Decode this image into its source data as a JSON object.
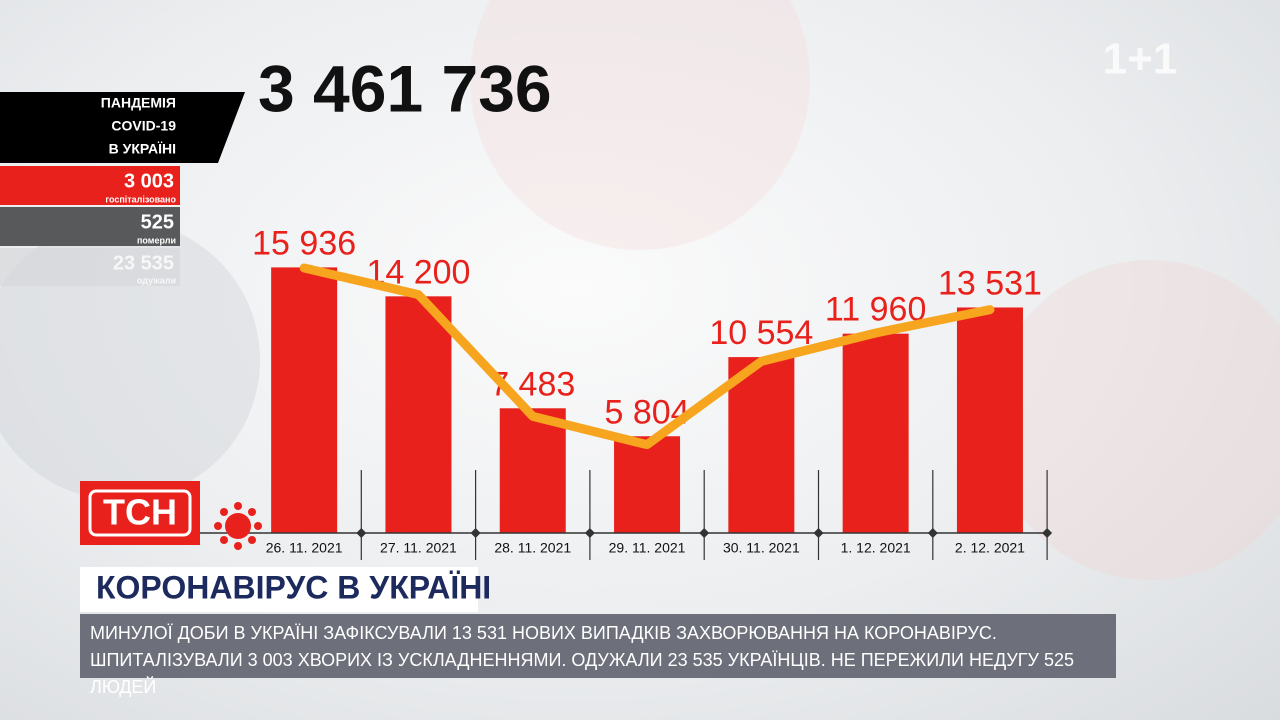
{
  "chart_data": {
    "type": "bar",
    "categories": [
      "26. 11. 2021",
      "27. 11. 2021",
      "28. 11. 2021",
      "29. 11. 2021",
      "30. 11. 2021",
      "1. 12. 2021",
      "2. 12. 2021"
    ],
    "ylim": [
      0,
      18000
    ],
    "series": [
      {
        "type": "bar",
        "color": "#e8211c",
        "values": [
          15936,
          14200,
          7483,
          5804,
          10554,
          11960,
          13531
        ],
        "value_labels": [
          "15 936",
          "14 200",
          "7 483",
          "5 804",
          "10 554",
          "11 960",
          "13 531"
        ]
      },
      {
        "type": "line",
        "color": "#f7a51e",
        "values": [
          15900,
          14300,
          7000,
          5300,
          10300,
          12000,
          13400
        ]
      }
    ]
  },
  "total": "3 461 736",
  "panel": {
    "title": [
      "ПАНДЕМІЯ",
      "COVID-19",
      "В УКРАЇНІ"
    ],
    "hospitalized": {
      "value": "3 003",
      "label": "госпіталізовано"
    },
    "died": {
      "value": "525",
      "label": "померли"
    },
    "recovered": {
      "value": "23 535",
      "label": "одужали"
    }
  },
  "channel": "1+1",
  "logo": "ТСН",
  "headline": "КОРОНАВІРУС В УКРАЇНІ",
  "ticker": "МИНУЛОЇ ДОБИ В УКРАЇНІ ЗАФІКСУВАЛИ 13 531 НОВИХ ВИПАДКІВ ЗАХВОРЮВАННЯ НА КОРОНАВІРУС. ШПИТАЛІЗУВАЛИ 3 003 ХВОРИХ ІЗ УСКЛАДНЕННЯМИ. ОДУЖАЛИ 23 535 УКРАЇНЦІВ. НЕ ПЕРЕЖИЛИ НЕДУГУ 525 ЛЮДЕЙ"
}
